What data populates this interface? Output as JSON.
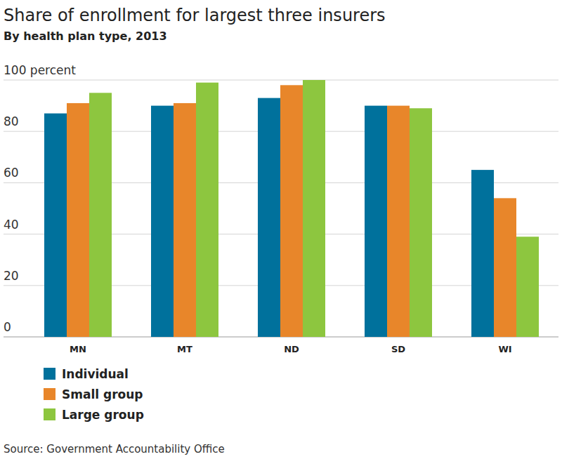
{
  "chart_data": {
    "type": "bar",
    "title": "Share of enrollment for largest three insurers",
    "subtitle": "By health plan type, 2013",
    "source": "Source: Government Accountability Office",
    "categories": [
      "MN",
      "MT",
      "ND",
      "SD",
      "WI"
    ],
    "series": [
      {
        "name": "Individual",
        "color": "#00719c",
        "values": [
          87,
          90,
          93,
          90,
          65
        ]
      },
      {
        "name": "Small group",
        "color": "#e8862a",
        "values": [
          91,
          91,
          98,
          90,
          54
        ]
      },
      {
        "name": "Large group",
        "color": "#8dc63f",
        "values": [
          95,
          99,
          100,
          89,
          39
        ]
      }
    ],
    "ylim": [
      0,
      100
    ],
    "yticks": [
      0,
      20,
      40,
      60,
      80,
      {
        "value": 100,
        "label": "100 percent"
      }
    ],
    "grid": true,
    "legend": "bottom-left"
  }
}
